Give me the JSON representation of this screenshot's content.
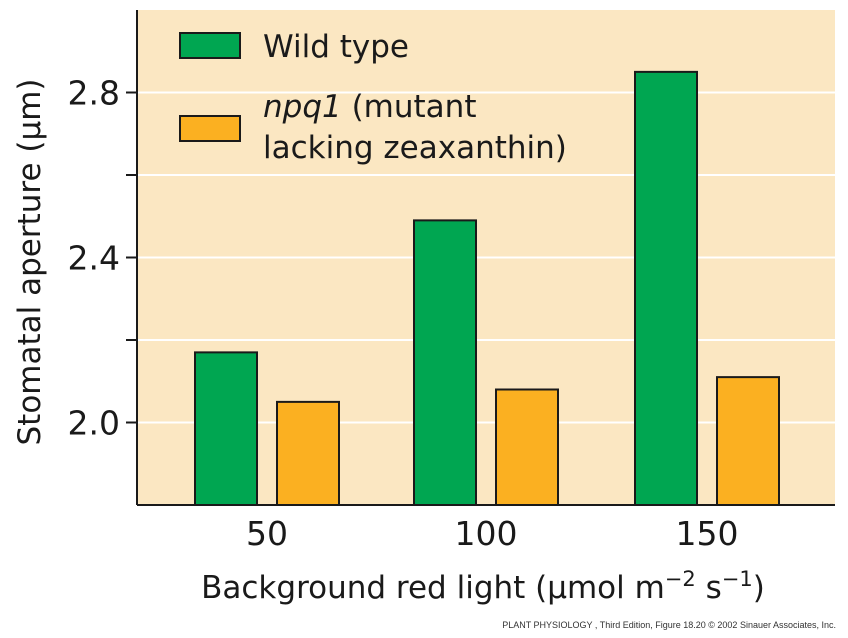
{
  "chart_data": {
    "type": "bar",
    "categories": [
      "50",
      "100",
      "150"
    ],
    "series": [
      {
        "name": "Wild type",
        "color": "#00a651",
        "values": [
          2.17,
          2.49,
          2.85
        ]
      },
      {
        "name_italic": "npq1",
        "name_rest": " (mutant",
        "name_line2": "lacking zeaxanthin)",
        "color": "#fbb021",
        "values": [
          2.05,
          2.08,
          2.11
        ]
      }
    ],
    "xlabel_main": "Background red light (μmol m",
    "xlabel_exp1": "−2",
    "xlabel_mid": " s",
    "xlabel_exp2": "−1",
    "xlabel_end": ")",
    "ylabel": "Stomatal aperture (μm)",
    "yticks": [
      {
        "value": 2.0,
        "label": "2.0"
      },
      {
        "value": 2.4,
        "label": "2.4"
      },
      {
        "value": 2.8,
        "label": "2.8"
      }
    ],
    "yminor": [
      2.2,
      2.6
    ],
    "ylim": [
      1.8,
      3.0
    ],
    "grid": true,
    "legend_position": "top-left",
    "plot_background": "#fbe7c2",
    "grid_color": "#ffffff",
    "bar_outline": "#1a1a1a"
  },
  "credit": "PLANT PHYSIOLOGY , Third Edition, Figure 18.20  © 2002 Sinauer Associates, Inc."
}
